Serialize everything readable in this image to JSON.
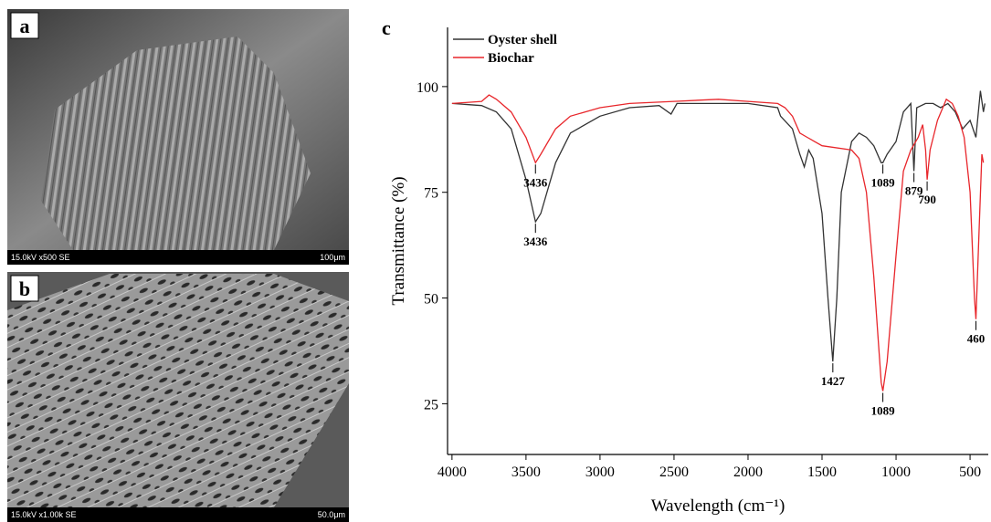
{
  "panels": [
    {
      "label": "a",
      "caption": "15.0kV x500 SE",
      "scale": "100μm"
    },
    {
      "label": "b",
      "caption": "15.0kV x1.00k SE",
      "scale": "50.0μm"
    }
  ],
  "chart_data": {
    "type": "line",
    "panel_label": "c",
    "xlabel": "Wavelength (cm⁻¹)",
    "ylabel": "Transmittance (%)",
    "xlim": [
      4030,
      377
    ],
    "xticks": [
      4000,
      3500,
      3000,
      2500,
      2000,
      1500,
      1000,
      500
    ],
    "ylim": [
      13,
      114
    ],
    "yticks": [
      25,
      50,
      75,
      100
    ],
    "legend": "top-left",
    "series": [
      {
        "name": "Oyster shell",
        "color": "#333333",
        "x": [
          4000,
          3800,
          3700,
          3600,
          3500,
          3436,
          3400,
          3300,
          3200,
          3000,
          2800,
          2600,
          2520,
          2480,
          2200,
          2000,
          1800,
          1780,
          1700,
          1650,
          1620,
          1590,
          1560,
          1500,
          1460,
          1427,
          1400,
          1370,
          1300,
          1250,
          1200,
          1150,
          1100,
          1089,
          1060,
          1000,
          950,
          900,
          879,
          860,
          800,
          750,
          700,
          650,
          600,
          550,
          500,
          460,
          430,
          410,
          400
        ],
        "values": [
          96,
          95.5,
          94,
          90,
          78,
          68,
          70,
          82,
          89,
          93,
          95,
          95.5,
          93.5,
          96,
          96,
          96,
          95,
          93,
          90,
          84,
          81,
          85,
          83,
          70,
          50,
          35,
          50,
          75,
          87,
          89,
          88,
          86,
          82,
          82,
          84,
          87,
          94,
          96,
          80,
          95,
          96,
          96,
          95,
          96,
          94,
          90,
          92,
          88,
          99,
          94,
          96
        ]
      },
      {
        "name": "Biochar",
        "color": "#e8262b",
        "x": [
          4000,
          3800,
          3750,
          3700,
          3600,
          3500,
          3436,
          3400,
          3300,
          3200,
          3000,
          2800,
          2500,
          2200,
          2000,
          1800,
          1750,
          1700,
          1650,
          1600,
          1500,
          1300,
          1250,
          1200,
          1150,
          1100,
          1089,
          1060,
          1000,
          950,
          900,
          850,
          820,
          800,
          790,
          770,
          720,
          660,
          620,
          580,
          540,
          500,
          470,
          460,
          440,
          420,
          410
        ],
        "values": [
          96,
          96.5,
          98,
          97,
          94,
          88,
          82,
          84,
          90,
          93,
          95,
          96,
          96.5,
          97,
          96.5,
          96,
          95,
          93,
          89,
          88,
          86,
          85,
          83,
          75,
          55,
          30,
          28,
          35,
          60,
          80,
          85,
          88,
          91,
          85,
          78,
          85,
          92,
          97,
          96,
          93,
          88,
          75,
          50,
          45,
          65,
          84,
          82
        ]
      }
    ],
    "annotations": [
      {
        "label": "3436",
        "x": 3436,
        "y": 68
      },
      {
        "label": "3436",
        "x": 3436,
        "y": 82
      },
      {
        "label": "1427",
        "x": 1427,
        "y": 35
      },
      {
        "label": "1089",
        "x": 1089,
        "y": 28
      },
      {
        "label": "1089",
        "x": 1089,
        "y": 82
      },
      {
        "label": "879",
        "x": 879,
        "y": 80
      },
      {
        "label": "790",
        "x": 790,
        "y": 78
      },
      {
        "label": "460",
        "x": 460,
        "y": 45
      }
    ]
  }
}
